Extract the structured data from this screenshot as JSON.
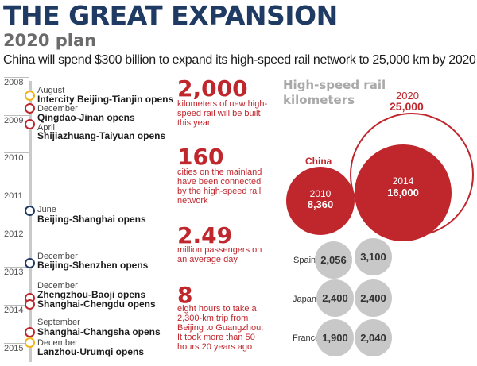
{
  "header": {
    "title": "THE GREAT EXPANSION",
    "subtitle": "2020 plan",
    "description": "China will spend $300 billion to expand its high-speed rail network to 25,000 km by 2020"
  },
  "timeline": {
    "years": [
      "2008",
      "2009",
      "2010",
      "2011",
      "2012",
      "2013",
      "2014",
      "2015"
    ],
    "events": [
      {
        "month": "August",
        "title": "Intercity Beijing-Tianjin opens",
        "color": "#f2b418"
      },
      {
        "month": "December",
        "title": "Qingdao-Jinan opens",
        "color": "#c0272d"
      },
      {
        "month": "April",
        "title": "Shijiazhuang-Taiyuan opens",
        "color": "#c0272d"
      },
      {
        "month": "June",
        "title": "Beijing-Shanghai opens",
        "color": "#1f3a63"
      },
      {
        "month": "December",
        "title": "Beijing-Shenzhen opens",
        "color": "#1f3a63"
      },
      {
        "month": "December",
        "title": "Zhengzhou-Baoji opens",
        "color": "#c0272d"
      },
      {
        "month": "",
        "title": "Shanghai-Chengdu opens",
        "color": "#c0272d"
      },
      {
        "month": "September",
        "title": "Shanghai-Changsha opens",
        "color": "#c0272d"
      },
      {
        "month": "December",
        "title": "Lanzhou-Urumqi opens",
        "color": "#f2b418"
      }
    ]
  },
  "stats": [
    {
      "number": "2,000",
      "text": "kilometers of new high-speed rail will be built this year"
    },
    {
      "number": "160",
      "text": "cities on the mainland have been connected by the high-speed rail network"
    },
    {
      "number": "2.49",
      "text": "million passengers on an average day"
    },
    {
      "number": "8",
      "text": "eight hours to take a 2,300-km trip from Beijing to Guangzhou. It took more than 50 hours 20 years ago"
    }
  ],
  "rail_km": {
    "heading": "High-speed rail kilometers",
    "china_label": "China",
    "plan": {
      "year": "2020",
      "value": "25,000"
    },
    "china_2014": {
      "year": "2014",
      "value": "16,000"
    },
    "china_2010": {
      "year": "2010",
      "value": "8,360"
    },
    "countries": [
      {
        "name": "Spain",
        "value_a": "2,056",
        "value_b": "3,100"
      },
      {
        "name": "Japan",
        "value_a": "2,400",
        "value_b": "2,400"
      },
      {
        "name": "France",
        "value_a": "1,900",
        "value_b": "2,040"
      }
    ]
  },
  "colors": {
    "navy": "#1f3a63",
    "red": "#c0272d",
    "yellow": "#f2b418",
    "gray": "#c8c8c8"
  }
}
